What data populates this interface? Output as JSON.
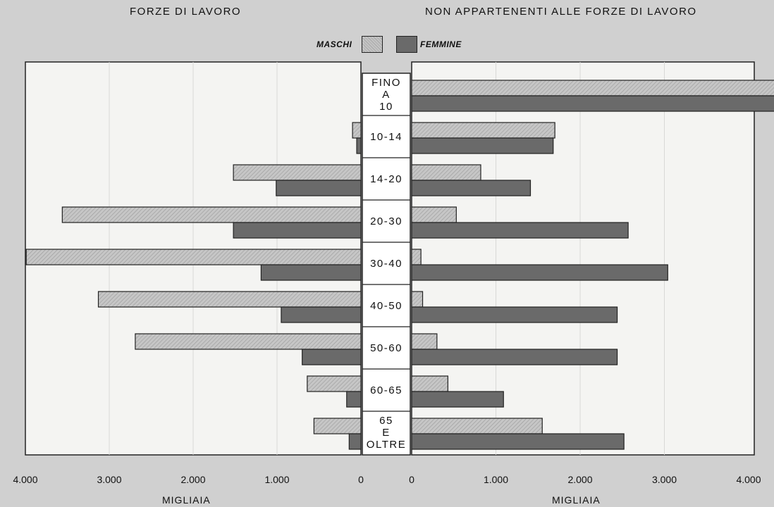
{
  "headers": {
    "left": "FORZE DI LAVORO",
    "right": "NON APPARTENENTI ALLE FORZE DI LAVORO"
  },
  "legend": {
    "male": "MASCHI",
    "female": "FEMMINE"
  },
  "units": {
    "left": "MIGLIAIA",
    "right": "MIGLIAIA"
  },
  "colors": {
    "background": "#d0d0d0",
    "plot_background": "#f4f4f2",
    "male_fill": "#b8b8b8",
    "female_fill": "#6a6a6a",
    "outline": "#222222"
  },
  "chart_data": {
    "type": "bar",
    "orientation": "horizontal-back-to-back",
    "categories": [
      [
        "FINO",
        "A",
        "10"
      ],
      [
        "10-14"
      ],
      [
        "14-20"
      ],
      [
        "20-30"
      ],
      [
        "30-40"
      ],
      [
        "40-50"
      ],
      [
        "50-60"
      ],
      [
        "60-65"
      ],
      [
        "65",
        "E",
        "OLTRE"
      ]
    ],
    "panels": [
      {
        "name": "FORZE DI LAVORO",
        "xlim": [
          0,
          4000
        ],
        "direction": "leftward",
        "ticks": [
          "4.000",
          "3.000",
          "2.000",
          "1.000",
          "0"
        ],
        "tick_values": [
          4000,
          3000,
          2000,
          1000,
          0
        ],
        "series": [
          {
            "name": "MASCHI",
            "values": [
              0,
              100,
              1520,
              3560,
              3990,
              3130,
              2690,
              640,
              560
            ]
          },
          {
            "name": "FEMMINE",
            "values": [
              0,
              50,
              1010,
              1520,
              1190,
              950,
              700,
              170,
              140
            ]
          }
        ]
      },
      {
        "name": "NON APPARTENENTI ALLE FORZE DI LAVORO",
        "xlim": [
          0,
          4000
        ],
        "direction": "rightward",
        "ticks": [
          "0",
          "1.000",
          "2.000",
          "3.000",
          "4.000"
        ],
        "tick_values": [
          0,
          1000,
          2000,
          3000,
          4000
        ],
        "series": [
          {
            "name": "MASCHI",
            "values": [
              4560,
              1700,
              820,
              530,
              110,
              130,
              300,
              430,
              1550
            ]
          },
          {
            "name": "FEMMINE",
            "values": [
              4380,
              1680,
              1410,
              2570,
              3040,
              2440,
              2440,
              1090,
              2520
            ]
          }
        ]
      }
    ]
  }
}
